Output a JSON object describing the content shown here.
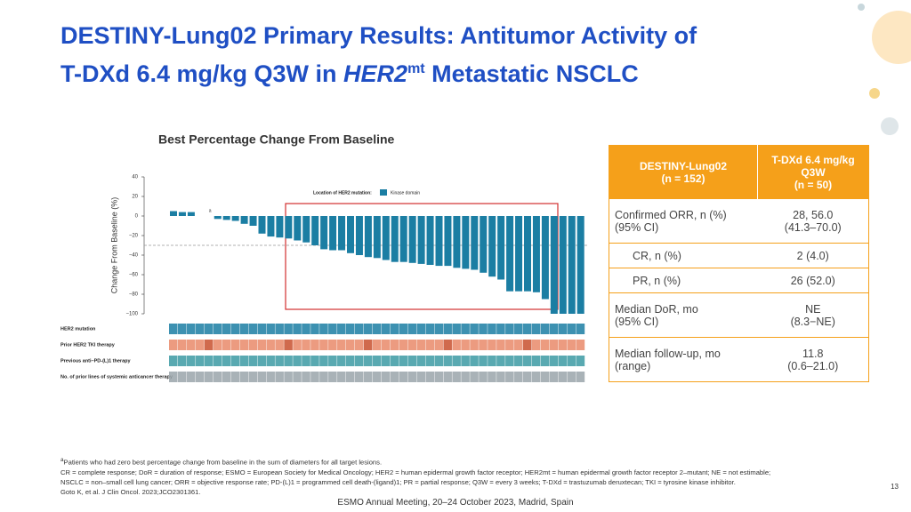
{
  "header": {
    "title_line1": "DESTINY-Lung02 Primary Results: Antitumor Activity of",
    "title_line2_a": "T-DXd 6.4 mg/kg Q3W in ",
    "title_line2_italic": "HER2",
    "title_line2_sup": "mt",
    "title_line2_b": " Metastatic NSCLC"
  },
  "chart_data": {
    "type": "bar",
    "title": "Best Percentage Change From Baseline",
    "y_label": "Change From Baseline (%)",
    "color": "#1b7ea3",
    "values": [
      5,
      4,
      4,
      0,
      0,
      -3,
      -4,
      -5,
      -8,
      -10,
      -18,
      -21,
      -22,
      -23,
      -25,
      -27,
      -30,
      -34,
      -35,
      -35,
      -38,
      -40,
      -42,
      -43,
      -45,
      -47,
      -47,
      -48,
      -49,
      -50,
      -51,
      -51,
      -53,
      -54,
      -55,
      -58,
      -62,
      -65,
      -77,
      -77,
      -77,
      -78,
      -85,
      -100,
      -100,
      -100,
      -100
    ],
    "ylim": [
      -100,
      40
    ],
    "yticks": [
      40,
      20,
      0,
      {
        "value": -20,
        "label": "−20"
      },
      {
        "value": -40,
        "label": "−40"
      },
      {
        "value": -60,
        "label": "−60"
      },
      {
        "value": -80,
        "label": "−80"
      },
      {
        "value": -100,
        "label": "−100"
      }
    ],
    "reference_line": -30,
    "annotation": "a",
    "legend_title": "Location of HER2 mutation:",
    "legend_entry": "Kinase domain",
    "row_labels": [
      "HER2 mutation",
      "Prior HER2 TKI therapy",
      "Previous anti–PD-(L)1 therapy",
      "No. of prior lines of systemic anticancer therapy"
    ]
  },
  "table": {
    "header": [
      "DESTINY-Lung02\n(n = 152)",
      "T-DXd 6.4 mg/kg\nQ3W\n(n = 50)"
    ],
    "rows": [
      [
        "Confirmed ORR, n (%)\n(95% CI)",
        "28, 56.0\n(41.3–70.0)"
      ],
      [
        "CR, n (%)",
        "2 (4.0)"
      ],
      [
        "PR, n (%)",
        "26 (52.0)"
      ],
      [
        "Median DoR, mo\n(95% CI)",
        "NE\n(8.3−NE)"
      ],
      [
        "Median follow-up, mo\n(range)",
        "11.8\n(0.6–21.0)"
      ]
    ]
  },
  "footnotes": {
    "sup": "a",
    "line1": "Patients who had zero best percentage change from baseline in the sum of diameters for all target lesions.",
    "line2": "CR = complete response; DoR = duration of response; ESMO = European Society for Medical Oncology; HER2 = human epidermal growth factor receptor; HER2mt = human epidermal growth factor receptor 2–mutant; NE = not estimable;",
    "line3": "NSCLC = non–small cell lung cancer; ORR = objective response rate; PD-(L)1 = programmed cell death-(ligand)1; PR = partial response; Q3W = every 3 weeks; T-DXd = trastuzumab deruxtecan; TKI = tyrosine kinase inhibitor.",
    "line4": "Goto K, et al. J Clin Oncol. 2023;JCO2301361."
  },
  "footer": {
    "meeting": "ESMO Annual Meeting, 20–24 October 2023, Madrid, Spain",
    "page": "13"
  }
}
